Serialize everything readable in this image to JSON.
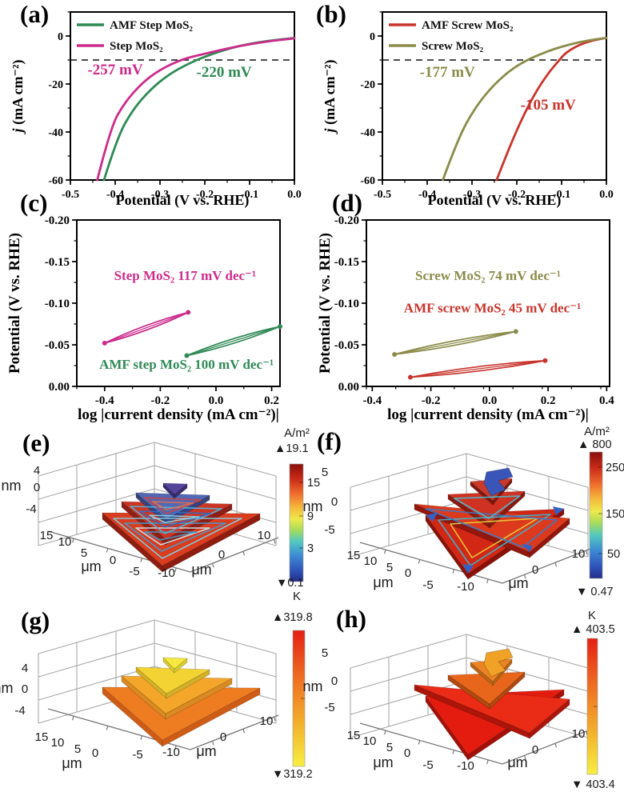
{
  "panel_tags": {
    "a": "(a)",
    "b": "(b)",
    "c": "(c)",
    "d": "(d)",
    "e": "(e)",
    "f": "(f)",
    "g": "(g)",
    "h": "(h)"
  },
  "chart_data": [
    {
      "id": "chart-a",
      "panel": "a",
      "type": "line",
      "xlabel": "Potential (V vs. RHE)",
      "ylabel": "j (mA cm⁻²)",
      "ylabel_italic_first": true,
      "xlim": [
        -0.5,
        0.0
      ],
      "ylim": [
        -60,
        10
      ],
      "xticks": [
        "-0.5",
        "-0.4",
        "-0.3",
        "-0.2",
        "-0.1",
        "0.0"
      ],
      "xtick_vals": [
        -0.5,
        -0.4,
        -0.3,
        -0.2,
        -0.1,
        0.0
      ],
      "yticks": [
        "0",
        "-20",
        "-40",
        "-60"
      ],
      "ytick_vals": [
        0,
        -20,
        -40,
        -60
      ],
      "xminor": 0.05,
      "yminor": 10,
      "dashed_line_y": -10,
      "legend": [
        {
          "label": "AMF Step MoS₂",
          "color": "#2f8a55"
        },
        {
          "label": "Step MoS₂",
          "color": "#cb2b8a"
        }
      ],
      "series": [
        {
          "name": "AMF Step MoS₂",
          "color": "#2f8a55",
          "points": [
            [
              0,
              -0.8
            ],
            [
              -0.04,
              -1.6
            ],
            [
              -0.08,
              -2.6
            ],
            [
              -0.12,
              -4.0
            ],
            [
              -0.16,
              -6.0
            ],
            [
              -0.2,
              -8.6
            ],
            [
              -0.24,
              -11.8
            ],
            [
              -0.28,
              -16.0
            ],
            [
              -0.32,
              -22.0
            ],
            [
              -0.36,
              -30.5
            ],
            [
              -0.395,
              -42.0
            ],
            [
              -0.425,
              -60.0
            ]
          ]
        },
        {
          "name": "Step MoS₂",
          "color": "#cb2b8a",
          "points": [
            [
              0,
              -1.0
            ],
            [
              -0.05,
              -2.0
            ],
            [
              -0.1,
              -3.4
            ],
            [
              -0.15,
              -5.2
            ],
            [
              -0.2,
              -7.4
            ],
            [
              -0.25,
              -9.6
            ],
            [
              -0.3,
              -14.0
            ],
            [
              -0.34,
              -19.5
            ],
            [
              -0.38,
              -28.0
            ],
            [
              -0.41,
              -38.0
            ],
            [
              -0.44,
              -60.0
            ]
          ]
        }
      ],
      "annotations": [
        {
          "text": "-257 mV",
          "color": "#cb2b8a",
          "x": -0.4,
          "y": -16
        },
        {
          "text": "-220 mV",
          "color": "#2f8a55",
          "x": -0.157,
          "y": -17
        }
      ]
    },
    {
      "id": "chart-b",
      "panel": "b",
      "type": "line",
      "xlabel": "Potential (V vs. RHE)",
      "ylabel": "j (mA cm⁻²)",
      "ylabel_italic_first": true,
      "xlim": [
        -0.5,
        0.0
      ],
      "ylim": [
        -60,
        10
      ],
      "xticks": [
        "-0.5",
        "-0.4",
        "-0.3",
        "-0.2",
        "-0.1",
        "0.0"
      ],
      "xtick_vals": [
        -0.5,
        -0.4,
        -0.3,
        -0.2,
        -0.1,
        0.0
      ],
      "yticks": [
        "0",
        "-20",
        "-40",
        "-60"
      ],
      "ytick_vals": [
        0,
        -20,
        -40,
        -60
      ],
      "xminor": 0.05,
      "yminor": 10,
      "dashed_line_y": -10,
      "legend": [
        {
          "label": "AMF Screw MoS₂",
          "color": "#c8342b"
        },
        {
          "label": "Screw MoS₂",
          "color": "#8b8b4a"
        }
      ],
      "series": [
        {
          "name": "AMF Screw MoS₂",
          "color": "#c8342b",
          "points": [
            [
              0,
              -0.8
            ],
            [
              -0.03,
              -1.8
            ],
            [
              -0.06,
              -3.6
            ],
            [
              -0.09,
              -6.8
            ],
            [
              -0.105,
              -10.0
            ],
            [
              -0.13,
              -15.5
            ],
            [
              -0.16,
              -24.0
            ],
            [
              -0.19,
              -35.0
            ],
            [
              -0.22,
              -48.0
            ],
            [
              -0.245,
              -60.0
            ]
          ]
        },
        {
          "name": "Screw MoS₂",
          "color": "#8b8b4a",
          "points": [
            [
              0,
              -0.8
            ],
            [
              -0.04,
              -1.8
            ],
            [
              -0.08,
              -3.4
            ],
            [
              -0.12,
              -5.6
            ],
            [
              -0.15,
              -7.8
            ],
            [
              -0.177,
              -10.0
            ],
            [
              -0.21,
              -13.6
            ],
            [
              -0.25,
              -20.0
            ],
            [
              -0.29,
              -29.0
            ],
            [
              -0.33,
              -42.0
            ],
            [
              -0.365,
              -60.0
            ]
          ]
        }
      ],
      "annotations": [
        {
          "text": "-177 mV",
          "color": "#8b8b4a",
          "x": -0.355,
          "y": -17
        },
        {
          "text": "-105 mV",
          "color": "#c8342b",
          "x": -0.13,
          "y": -30.7
        }
      ]
    },
    {
      "id": "chart-c",
      "panel": "c",
      "type": "line",
      "xlabel": "log |current density (mA cm⁻²)|",
      "ylabel": "Potential (V vs. RHE)",
      "xlim": [
        -0.5,
        0.23
      ],
      "ylim": [
        0,
        -0.2
      ],
      "xticks": [
        "-0.4",
        "-0.2",
        "0.0",
        "0.2"
      ],
      "xtick_vals": [
        -0.4,
        -0.2,
        0.0,
        0.2
      ],
      "yticks": [
        "-0.20",
        "-0.15",
        "-0.10",
        "-0.05",
        "0.00"
      ],
      "ytick_vals": [
        -0.2,
        -0.15,
        -0.1,
        -0.05,
        0.0
      ],
      "xminor": 0.1,
      "yminor": 0.025,
      "series": [
        {
          "name": "Step MoS₂",
          "tafel_slope": "117 mV dec⁻¹",
          "color": "#cb2b8a",
          "lens": true,
          "points": [
            [
              -0.4,
              -0.052
            ],
            [
              -0.1,
              -0.089
            ]
          ]
        },
        {
          "name": "AMF step MoS₂",
          "tafel_slope": "100 mV dec⁻¹",
          "color": "#2f8a55",
          "lens": true,
          "points": [
            [
              -0.105,
              -0.037
            ],
            [
              0.23,
              -0.072
            ]
          ]
        }
      ],
      "annotations": [
        {
          "text": "Step MoS₂ 117 mV dec⁻¹",
          "color": "#cb2b8a",
          "x": -0.111,
          "y": -0.128
        },
        {
          "text": "AMF step MoS₂ 100 mV dec⁻¹",
          "color": "#2f8a55",
          "x": -0.106,
          "y": -0.021
        }
      ]
    },
    {
      "id": "chart-d",
      "panel": "d",
      "type": "line",
      "xlabel": "log |current density (mA cm⁻²)|",
      "ylabel": "Potential (V vs. RHE)",
      "xlim": [
        -0.42,
        0.41
      ],
      "ylim": [
        0,
        -0.2
      ],
      "xticks": [
        "-0.4",
        "-0.2",
        "0.0",
        "0.2",
        "0.4"
      ],
      "xtick_vals": [
        -0.4,
        -0.2,
        0.0,
        0.2,
        0.4
      ],
      "yticks": [
        "-0.20",
        "-0.15",
        "-0.10",
        "-0.05",
        "0.00"
      ],
      "ytick_vals": [
        -0.2,
        -0.15,
        -0.1,
        -0.05,
        0.0
      ],
      "xminor": 0.1,
      "yminor": 0.025,
      "series": [
        {
          "name": "Screw MoS₂",
          "tafel_slope": "74 mV dec⁻¹",
          "color": "#8b8b4a",
          "lens": true,
          "points": [
            [
              -0.324,
              -0.0385
            ],
            [
              0.09,
              -0.066
            ]
          ]
        },
        {
          "name": "AMF screw MoS₂",
          "tafel_slope": "45 mV dec⁻¹",
          "color": "#c8342b",
          "lens": true,
          "points": [
            [
              -0.27,
              -0.011
            ],
            [
              0.19,
              -0.031
            ]
          ]
        }
      ],
      "annotations": [
        {
          "text": "Screw MoS₂ 74 mV dec⁻¹",
          "color": "#8b8b4a",
          "x": -0.005,
          "y": -0.128
        },
        {
          "text": "AMF screw MoS₂ 45 mV dec⁻¹",
          "color": "#c8342b",
          "x": 0.01,
          "y": -0.089
        }
      ]
    },
    {
      "id": "chart-e",
      "panel": "e",
      "type": "surface3d",
      "surface_shape": "step-pyramid",
      "colormap": "jet",
      "z_axis": {
        "label": "nm",
        "ticks": [
          "4",
          "0",
          "-4"
        ]
      },
      "y_axis": {
        "label": "μm",
        "ticks": [
          "15",
          "10",
          "5",
          "0"
        ]
      },
      "x_axis": {
        "label": "μm",
        "ticks_front": [
          "-5",
          "-10"
        ],
        "ticks_right": [
          "0",
          "10"
        ]
      },
      "colorbar": {
        "unit": "A/m²",
        "max": "▲19.1",
        "ticks": [
          "15",
          "9",
          "3"
        ],
        "min": "▼0.1"
      }
    },
    {
      "id": "chart-f",
      "panel": "f",
      "type": "surface3d",
      "surface_shape": "screw-pyramid",
      "colormap": "jet",
      "z_axis": {
        "label": "nm",
        "ticks": [
          "5",
          "0",
          "-5"
        ]
      },
      "y_axis": {
        "label": "μm",
        "ticks": [
          "15",
          "10",
          "5",
          "0"
        ]
      },
      "x_axis": {
        "label": "μm",
        "ticks_front": [
          "-5",
          "-10"
        ],
        "ticks_right": [
          "0",
          "10"
        ]
      },
      "colorbar": {
        "unit": "A/m²",
        "max": "▲ 800",
        "ticks": [
          "250",
          "150",
          "50"
        ],
        "min": "▼ 0.47"
      }
    },
    {
      "id": "chart-g",
      "panel": "g",
      "type": "surface3d",
      "surface_shape": "step-pyramid",
      "colormap": "red-yellow",
      "z_axis": {
        "label": "nm",
        "ticks": [
          "4",
          "0",
          "-4"
        ]
      },
      "y_axis": {
        "label": "μm",
        "ticks": [
          "15",
          "10",
          "5",
          "0"
        ]
      },
      "x_axis": {
        "label": "μm",
        "ticks_front": [
          "-5",
          "-10"
        ],
        "ticks_right": [
          "0",
          "10"
        ]
      },
      "colorbar": {
        "unit": "K",
        "max": "▲319.8",
        "ticks": [],
        "min": "▼319.2"
      }
    },
    {
      "id": "chart-h",
      "panel": "h",
      "type": "surface3d",
      "surface_shape": "screw-pyramid",
      "colormap": "red-yellow",
      "z_axis": {
        "label": "nm",
        "ticks": [
          "5",
          "0",
          "-5"
        ]
      },
      "y_axis": {
        "label": "μm",
        "ticks": [
          "15",
          "10",
          "5",
          "0"
        ]
      },
      "x_axis": {
        "label": "μm",
        "ticks_front": [
          "-5",
          "-10"
        ],
        "ticks_right": [
          "0",
          "10"
        ]
      },
      "colorbar": {
        "unit": "K",
        "max": "▲ 403.5",
        "ticks": [],
        "min": "▼ 403.4"
      }
    }
  ]
}
